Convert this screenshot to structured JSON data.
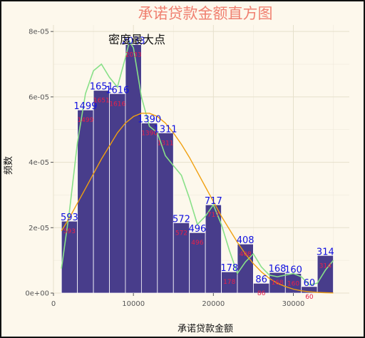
{
  "chart_data": {
    "type": "bar",
    "title": "承诺贷款金额直方图",
    "xlabel": "承诺贷款金额",
    "ylabel": "频数",
    "annotation": "密度最大点",
    "xlim": [
      0,
      37000
    ],
    "ylim": [
      0,
      8.2e-05
    ],
    "x_ticks": [
      0,
      10000,
      20000,
      30000
    ],
    "x_tick_labels": [
      "0",
      "10000",
      "20000",
      "30000"
    ],
    "y_ticks": [
      0,
      2e-05,
      4e-05,
      6e-05,
      8e-05
    ],
    "y_tick_labels": [
      "0e+00",
      "2e-05",
      "4e-05",
      "6e-05",
      "8e-05"
    ],
    "bin_width": 2000,
    "bins_start": [
      1000,
      3000,
      5000,
      7000,
      9000,
      11000,
      13000,
      15000,
      17000,
      19000,
      21000,
      23000,
      25000,
      27000,
      29000,
      31000,
      33000
    ],
    "counts": [
      593,
      1499,
      1651,
      1616,
      2033,
      1390,
      1311,
      572,
      496,
      717,
      178,
      408,
      86,
      168,
      160,
      60,
      314
    ],
    "density": [
      2.2e-05,
      5.6e-05,
      6.2e-05,
      6.1e-05,
      7.6e-05,
      5.2e-05,
      4.9e-05,
      2.15e-05,
      1.85e-05,
      2.7e-05,
      6.5e-06,
      1.5e-05,
      3e-06,
      6.3e-06,
      6e-06,
      2e-06,
      1.15e-05
    ],
    "kde_curve": {
      "color": "#88e088",
      "x": [
        1000,
        2000,
        3000,
        4000,
        5000,
        6000,
        7000,
        8000,
        9000,
        9500,
        10000,
        11000,
        12000,
        13000,
        14000,
        15000,
        16000,
        17000,
        18000,
        19000,
        20000,
        21000,
        22000,
        23000,
        24000,
        25000,
        26000,
        27000,
        28000,
        29000,
        30000,
        31000,
        32000,
        33000,
        34000,
        35000
      ],
      "y": [
        7.5e-06,
        2.5e-05,
        4.6e-05,
        6.1e-05,
        6.8e-05,
        7e-05,
        6.6e-05,
        6.3e-05,
        7.2e-05,
        7.7e-05,
        7.5e-05,
        6e-05,
        5.1e-05,
        4.9e-05,
        4.2e-05,
        3.9e-05,
        3.6e-05,
        2.9e-05,
        2.1e-05,
        2.35e-05,
        2.7e-05,
        2.1e-05,
        1.3e-05,
        6e-06,
        9.5e-06,
        1.2e-05,
        8e-06,
        5.5e-06,
        5e-06,
        5.5e-06,
        6e-06,
        5e-06,
        2.5e-06,
        3e-06,
        7e-06,
        1e-05
      ]
    },
    "normal_curve": {
      "color": "#f0a010",
      "x": [
        1000,
        2000,
        3000,
        4000,
        5000,
        6000,
        7000,
        8000,
        9000,
        10000,
        11000,
        12000,
        13000,
        14000,
        15000,
        16000,
        17000,
        18000,
        19000,
        20000,
        21000,
        22000,
        23000,
        24000,
        25000,
        26000,
        27000,
        28000,
        29000,
        30000,
        31000,
        32000,
        33000,
        34000,
        35000
      ],
      "y": [
        1.9e-05,
        2.3e-05,
        2.75e-05,
        3.2e-05,
        3.65e-05,
        4.1e-05,
        4.5e-05,
        4.9e-05,
        5.2e-05,
        5.4e-05,
        5.5e-05,
        5.5e-05,
        5.4e-05,
        5.2e-05,
        4.9e-05,
        4.55e-05,
        4.15e-05,
        3.7e-05,
        3.25e-05,
        2.8e-05,
        2.35e-05,
        1.95e-05,
        1.55e-05,
        1.2e-05,
        9e-06,
        6.5e-06,
        4.5e-06,
        3e-06,
        2e-06,
        1.2e-06,
        7e-07,
        4e-07,
        2e-07,
        1e-07,
        5e-08
      ]
    },
    "bar_color": "#483d8b",
    "grid": true
  }
}
